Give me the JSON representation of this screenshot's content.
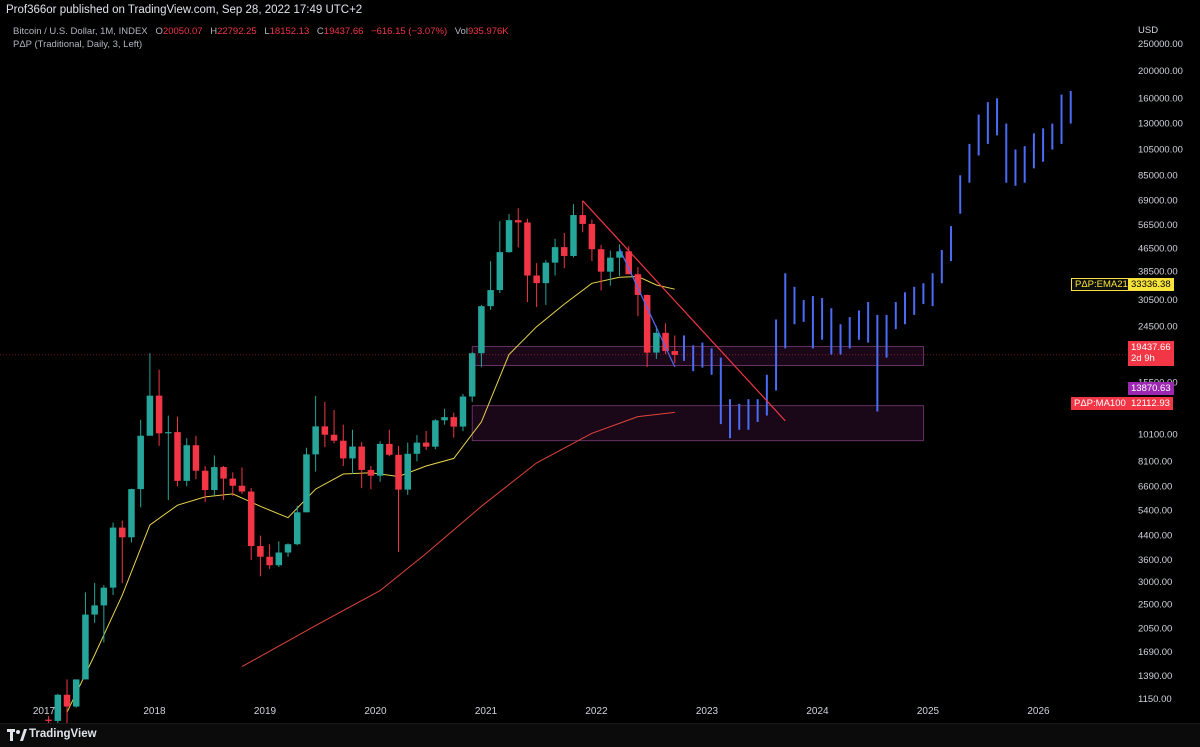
{
  "header": {
    "publisher_text": "Prof366or published on TradingView.com, Sep 28, 2022 17:49 UTC+2"
  },
  "legend": {
    "symbol": "Bitcoin / U.S. Dollar, 1M, INDEX",
    "ohlc": [
      {
        "key": "O",
        "value": "20050.07"
      },
      {
        "key": "H",
        "value": "22792.25"
      },
      {
        "key": "L",
        "value": "18152.13"
      },
      {
        "key": "C",
        "value": "19437.66"
      },
      {
        "key": "",
        "value": "−616.15 (−3.07%)"
      },
      {
        "key": "Vol",
        "value": "935.976K"
      }
    ],
    "indicator": "PΔP (Traditional, Daily, 3, Left)"
  },
  "price_axis": {
    "currency": "USD",
    "labels": [
      "250000.00",
      "200000.00",
      "160000.00",
      "130000.00",
      "105000.00",
      "85000.00",
      "69000.00",
      "56500.00",
      "46500.00",
      "38500.00",
      "30500.00",
      "24500.00",
      "15500.00",
      "10100.00",
      "8100.00",
      "6600.00",
      "5400.00",
      "4400.00",
      "3600.00",
      "3000.00",
      "2500.00",
      "2050.00",
      "1690.00",
      "1390.00",
      "1150.00"
    ],
    "badges": {
      "ema_name": "PΔP:EMA21",
      "ema_value": "33336.38",
      "last_price": "19437.66",
      "countdown": "2d 9h",
      "level": "13870.63",
      "ma_name": "PΔP:MA100",
      "ma_value": "12112.93"
    }
  },
  "time_axis": {
    "labels": [
      "2017",
      "2018",
      "2019",
      "2020",
      "2021",
      "2022",
      "2023",
      "2024",
      "2025",
      "2026"
    ]
  },
  "footer": {
    "brand": "TradingView"
  },
  "colors": {
    "up": "#26a69a",
    "down": "#f23645",
    "projection": "#4a6cf7",
    "ema": "#e8d44d",
    "ma": "#e0443a",
    "trendline": "#f23645",
    "zone_fill": "#3a1238",
    "zone_border": "#7a3c78",
    "ema_badge": "#f7e33c",
    "last_badge": "#f23645",
    "level_badge": "#9c27b0",
    "ma_badge": "#f23645"
  },
  "chart_data": {
    "type": "candlestick",
    "symbol": "Bitcoin / U.S. Dollar",
    "interval": "1M",
    "y_scale": "log",
    "ylim": [
      1050,
      250000
    ],
    "x_range": [
      "2017-01",
      "2026-06"
    ],
    "candles": [
      [
        "2017-01",
        970,
        1000,
        780,
        960
      ],
      [
        "2017-02",
        960,
        1200,
        920,
        1190
      ],
      [
        "2017-03",
        1190,
        1350,
        890,
        1080
      ],
      [
        "2017-04",
        1080,
        1350,
        1070,
        1350
      ],
      [
        "2017-05",
        1350,
        2760,
        1350,
        2300
      ],
      [
        "2017-06",
        2300,
        2980,
        2150,
        2480
      ],
      [
        "2017-07",
        2480,
        2930,
        1830,
        2870
      ],
      [
        "2017-08",
        2870,
        4900,
        2700,
        4700
      ],
      [
        "2017-09",
        4700,
        4980,
        2980,
        4340
      ],
      [
        "2017-10",
        4340,
        6470,
        4160,
        6450
      ],
      [
        "2017-11",
        6450,
        11400,
        5550,
        10000
      ],
      [
        "2017-12",
        10000,
        19700,
        10000,
        13900
      ],
      [
        "2018-01",
        13900,
        17200,
        9200,
        10200
      ],
      [
        "2018-02",
        10200,
        11800,
        5900,
        10300
      ],
      [
        "2018-03",
        10300,
        11700,
        6600,
        6900
      ],
      [
        "2018-04",
        6900,
        9800,
        6600,
        9250
      ],
      [
        "2018-05",
        9250,
        10000,
        7000,
        7500
      ],
      [
        "2018-06",
        7500,
        7800,
        5800,
        6400
      ],
      [
        "2018-07",
        6400,
        8500,
        6100,
        7730
      ],
      [
        "2018-08",
        7730,
        7800,
        5900,
        7030
      ],
      [
        "2018-09",
        7030,
        7400,
        6100,
        6630
      ],
      [
        "2018-10",
        6630,
        7700,
        6200,
        6320
      ],
      [
        "2018-11",
        6320,
        6500,
        3600,
        4040
      ],
      [
        "2018-12",
        4040,
        4400,
        3150,
        3700
      ],
      [
        "2019-01",
        3700,
        4100,
        3350,
        3450
      ],
      [
        "2019-02",
        3450,
        4200,
        3400,
        3830
      ],
      [
        "2019-03",
        3830,
        4130,
        3700,
        4100
      ],
      [
        "2019-04",
        4100,
        5620,
        4070,
        5330
      ],
      [
        "2019-05",
        5330,
        9060,
        5330,
        8580
      ],
      [
        "2019-06",
        8580,
        13880,
        7450,
        10800
      ],
      [
        "2019-07",
        10800,
        13200,
        9100,
        10080
      ],
      [
        "2019-08",
        10080,
        12350,
        9400,
        9600
      ],
      [
        "2019-09",
        9600,
        10950,
        7800,
        8300
      ],
      [
        "2019-10",
        8300,
        10500,
        7300,
        9150
      ],
      [
        "2019-11",
        9150,
        9500,
        6500,
        7550
      ],
      [
        "2019-12",
        7550,
        7800,
        6450,
        7200
      ],
      [
        "2020-01",
        7200,
        9550,
        6850,
        9350
      ],
      [
        "2020-02",
        9350,
        10500,
        8450,
        8550
      ],
      [
        "2020-03",
        8550,
        9200,
        3850,
        6420
      ],
      [
        "2020-04",
        6420,
        9450,
        6150,
        8620
      ],
      [
        "2020-05",
        8620,
        10050,
        8100,
        9450
      ],
      [
        "2020-06",
        9450,
        10400,
        8900,
        9140
      ],
      [
        "2020-07",
        9140,
        11450,
        8950,
        11350
      ],
      [
        "2020-08",
        11350,
        12480,
        10950,
        11650
      ],
      [
        "2020-09",
        11650,
        12080,
        9850,
        10780
      ],
      [
        "2020-10",
        10780,
        14100,
        10380,
        13800
      ],
      [
        "2020-11",
        13800,
        19900,
        13200,
        19700
      ],
      [
        "2020-12",
        19700,
        29300,
        17600,
        29000
      ],
      [
        "2021-01",
        29000,
        41950,
        28150,
        33100
      ],
      [
        "2021-02",
        33100,
        58350,
        32300,
        45200
      ],
      [
        "2021-03",
        45200,
        61800,
        45000,
        58800
      ],
      [
        "2021-04",
        58800,
        64850,
        47000,
        57700
      ],
      [
        "2021-05",
        57700,
        59500,
        30000,
        37300
      ],
      [
        "2021-06",
        37300,
        41300,
        28800,
        35040
      ],
      [
        "2021-07",
        35040,
        42300,
        29300,
        41460
      ],
      [
        "2021-08",
        41460,
        50500,
        37300,
        47100
      ],
      [
        "2021-09",
        47100,
        52900,
        39600,
        43800
      ],
      [
        "2021-10",
        43800,
        67000,
        43300,
        61300
      ],
      [
        "2021-11",
        61300,
        69000,
        53250,
        57000
      ],
      [
        "2021-12",
        57000,
        59100,
        42000,
        46300
      ],
      [
        "2022-01",
        46300,
        47950,
        33000,
        38500
      ],
      [
        "2022-02",
        38500,
        45800,
        34300,
        43200
      ],
      [
        "2022-03",
        43200,
        48200,
        37200,
        45500
      ],
      [
        "2022-04",
        45500,
        47450,
        37700,
        37700
      ],
      [
        "2022-05",
        37700,
        40000,
        26700,
        31800
      ],
      [
        "2022-06",
        31800,
        31900,
        17600,
        19800
      ],
      [
        "2022-07",
        19800,
        24650,
        18800,
        23300
      ],
      [
        "2022-08",
        23300,
        25200,
        19550,
        20050
      ],
      [
        "2022-09",
        20050,
        22792.25,
        18152.13,
        19437.66
      ]
    ],
    "projection_bars": [
      [
        "2022-10",
        18500,
        22800
      ],
      [
        "2022-11",
        17000,
        21000
      ],
      [
        "2022-12",
        17500,
        21500
      ],
      [
        "2023-01",
        16500,
        20500
      ],
      [
        "2023-02",
        11000,
        19000
      ],
      [
        "2023-03",
        9800,
        13500
      ],
      [
        "2023-04",
        10500,
        13000
      ],
      [
        "2023-05",
        10500,
        13500
      ],
      [
        "2023-06",
        11200,
        13500
      ],
      [
        "2023-07",
        11800,
        16500
      ],
      [
        "2023-08",
        14500,
        26000
      ],
      [
        "2023-09",
        20500,
        38000
      ],
      [
        "2023-10",
        25000,
        34000
      ],
      [
        "2023-11",
        25500,
        30500
      ],
      [
        "2023-12",
        20500,
        31500
      ],
      [
        "2024-01",
        22000,
        31000
      ],
      [
        "2024-02",
        19500,
        28500
      ],
      [
        "2024-03",
        19500,
        25000
      ],
      [
        "2024-04",
        20500,
        26500
      ],
      [
        "2024-05",
        22000,
        28000
      ],
      [
        "2024-06",
        21500,
        30000
      ],
      [
        "2024-07",
        12200,
        27000
      ],
      [
        "2024-08",
        19000,
        27000
      ],
      [
        "2024-09",
        24000,
        30000
      ],
      [
        "2024-10",
        25000,
        32500
      ],
      [
        "2024-11",
        27000,
        34000
      ],
      [
        "2024-12",
        29500,
        35000
      ],
      [
        "2025-01",
        29000,
        38000
      ],
      [
        "2025-02",
        35000,
        46000
      ],
      [
        "2025-03",
        42000,
        56000
      ],
      [
        "2025-04",
        62000,
        85000
      ],
      [
        "2025-05",
        80000,
        110000
      ],
      [
        "2025-06",
        100000,
        140000
      ],
      [
        "2025-07",
        110000,
        155000
      ],
      [
        "2025-08",
        118000,
        160000
      ],
      [
        "2025-09",
        80000,
        130000
      ],
      [
        "2025-10",
        78000,
        105000
      ],
      [
        "2025-11",
        80000,
        108000
      ],
      [
        "2025-12",
        90000,
        120000
      ],
      [
        "2026-01",
        95000,
        125000
      ],
      [
        "2026-02",
        105000,
        130000
      ],
      [
        "2026-03",
        110000,
        165000
      ],
      [
        "2026-04",
        130000,
        170000
      ]
    ],
    "ema21": [
      [
        "2017-03",
        1030
      ],
      [
        "2017-06",
        1650
      ],
      [
        "2017-09",
        2700
      ],
      [
        "2017-12",
        4800
      ],
      [
        "2018-03",
        5650
      ],
      [
        "2018-06",
        6050
      ],
      [
        "2018-09",
        6200
      ],
      [
        "2018-12",
        5600
      ],
      [
        "2019-03",
        5100
      ],
      [
        "2019-06",
        6450
      ],
      [
        "2019-09",
        7300
      ],
      [
        "2019-12",
        7380
      ],
      [
        "2020-03",
        7150
      ],
      [
        "2020-06",
        7800
      ],
      [
        "2020-09",
        8300
      ],
      [
        "2020-12",
        11200
      ],
      [
        "2021-03",
        19500
      ],
      [
        "2021-06",
        24500
      ],
      [
        "2021-09",
        29500
      ],
      [
        "2021-12",
        35000
      ],
      [
        "2022-03",
        36800
      ],
      [
        "2022-05",
        37000
      ],
      [
        "2022-07",
        34500
      ],
      [
        "2022-09",
        33336.38
      ]
    ],
    "ma100": [
      [
        "2018-10",
        1500
      ],
      [
        "2019-06",
        2100
      ],
      [
        "2020-01",
        2800
      ],
      [
        "2020-06",
        3800
      ],
      [
        "2020-12",
        5600
      ],
      [
        "2021-06",
        8000
      ],
      [
        "2021-12",
        10200
      ],
      [
        "2022-05",
        11700
      ],
      [
        "2022-09",
        12112.93
      ]
    ],
    "trendlines": [
      {
        "from": [
          "2021-11",
          69000
        ],
        "to": [
          "2023-09",
          11300
        ]
      },
      {
        "from": [
          "2022-03",
          46500
        ],
        "to": [
          "2022-09",
          17600
        ]
      }
    ],
    "zones": [
      {
        "from": "2020-11",
        "to": "2024-12",
        "low": 17800,
        "high": 20800
      },
      {
        "from": "2020-11",
        "to": "2024-12",
        "low": 9600,
        "high": 12800
      }
    ],
    "last_price": 19437.66
  }
}
